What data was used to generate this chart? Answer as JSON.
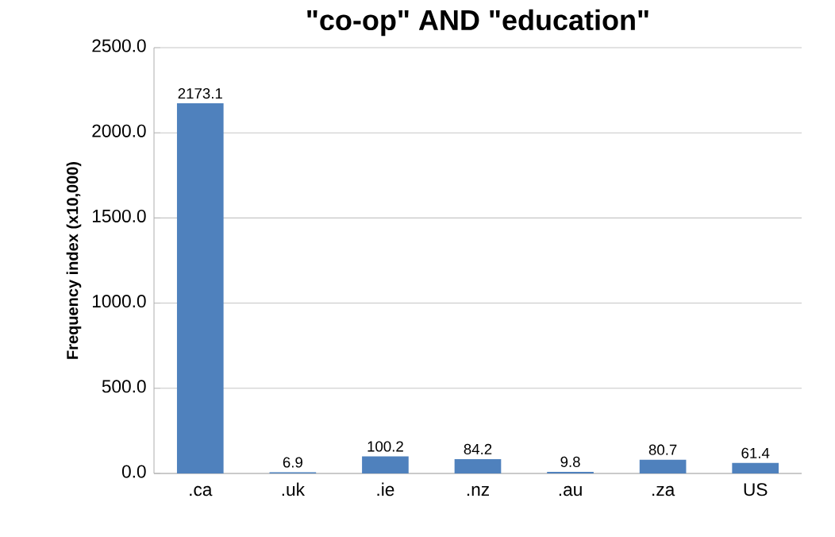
{
  "chart_data": {
    "type": "bar",
    "title": "\"co-op\" AND \"education\"",
    "ylabel": "Frequency index (x10,000)",
    "categories": [
      ".ca",
      ".uk",
      ".ie",
      ".nz",
      ".au",
      ".za",
      "US"
    ],
    "values": [
      2173.1,
      6.9,
      100.2,
      84.2,
      9.8,
      80.7,
      61.4
    ],
    "color": "#4f81bd",
    "data_labels": true,
    "grid": "y",
    "ylim": [
      0,
      2500
    ],
    "yticks": [
      {
        "value": 0,
        "label": "0.0"
      },
      {
        "value": 500,
        "label": "500.0"
      },
      {
        "value": 1000,
        "label": "1000.0"
      },
      {
        "value": 1500,
        "label": "1500.0"
      },
      {
        "value": 2000,
        "label": "2000.0"
      },
      {
        "value": 2500,
        "label": "2500.0"
      }
    ]
  }
}
